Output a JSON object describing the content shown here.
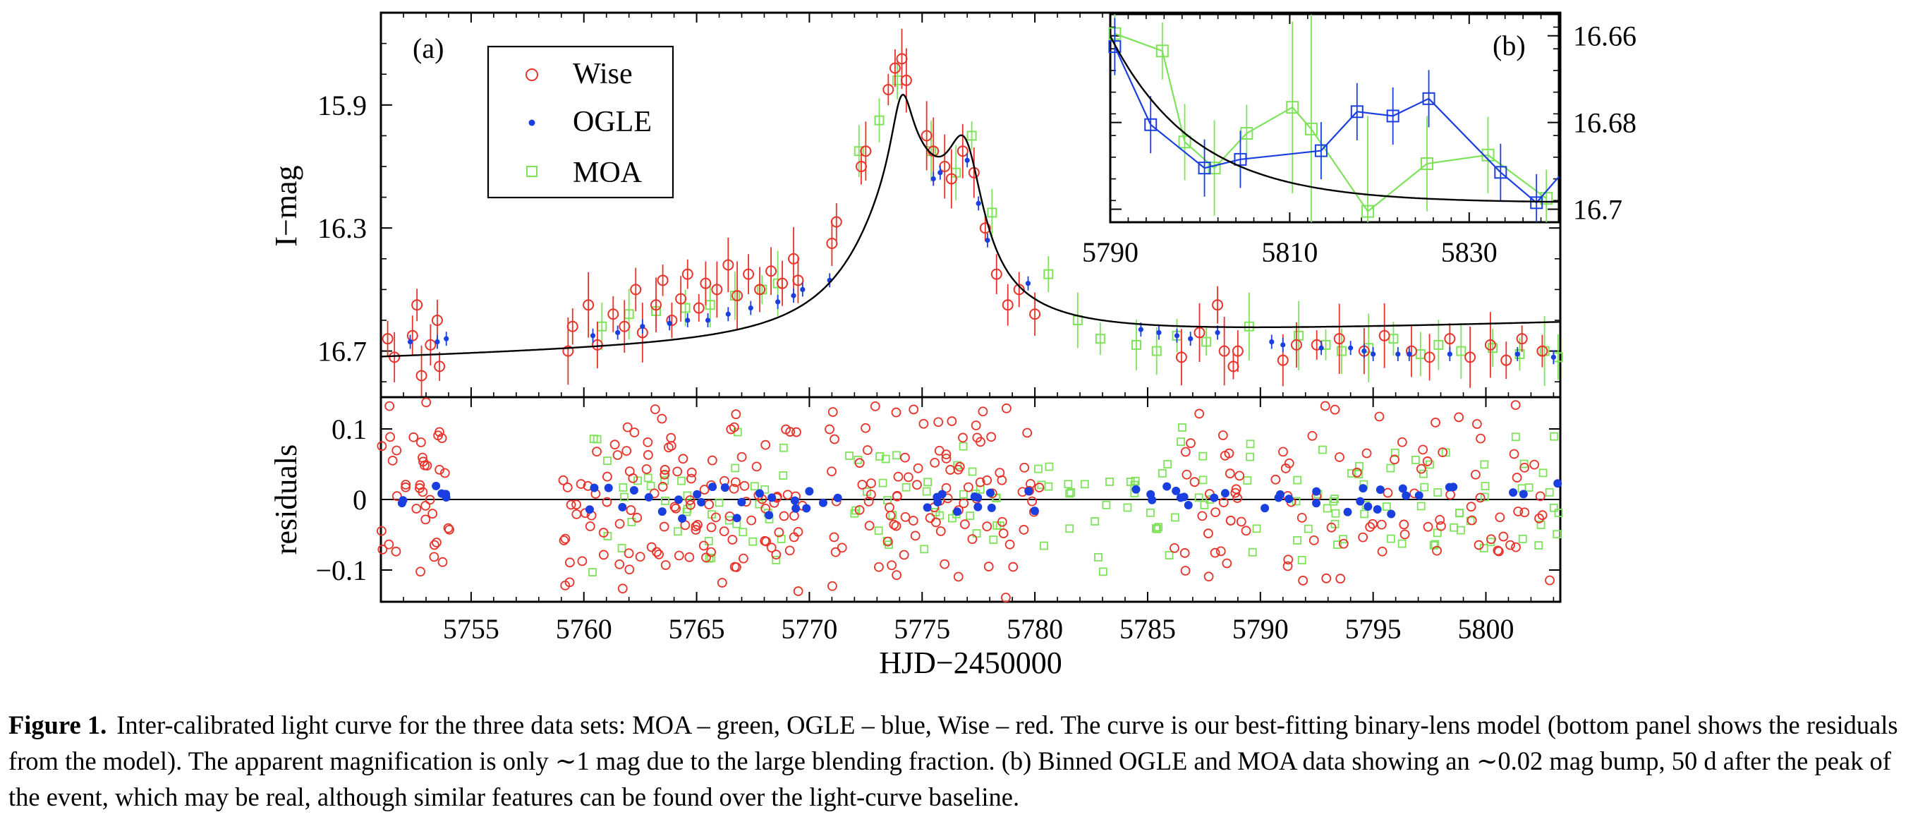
{
  "figure": {
    "caption_label": "Figure 1.",
    "caption_text": "Inter-calibrated light curve for the three data sets: MOA – green, OGLE – blue, Wise – red. The curve is our best-fitting binary-lens model (bottom panel shows the residuals from the model). The apparent magnification is only ∼1 mag due to the large blending fraction. (b) Binned OGLE and MOA data showing an ∼0.02 mag bump, 50 d after the peak of the event, which may be real, although similar features can be found over the light-curve baseline."
  },
  "colors": {
    "wise": "#e8332a",
    "ogle": "#1a3fe0",
    "moa": "#7ee35a",
    "model": "#000000"
  },
  "chart_data": [
    {
      "panel": "a",
      "type": "scatter",
      "panel_label": "(a)",
      "xlabel": "HJD−2450000",
      "ylabel": "I−mag",
      "xlim": [
        5751,
        5803.3
      ],
      "ylim": [
        16.85,
        15.6
      ],
      "y_inverted": true,
      "xticks": [
        5755,
        5760,
        5765,
        5770,
        5775,
        5780,
        5785,
        5790,
        5795,
        5800
      ],
      "yticks": [
        15.9,
        16.3,
        16.7
      ],
      "legend": {
        "placement": "top-left",
        "entries": [
          "Wise",
          "OGLE",
          "MOA"
        ]
      },
      "series": [
        {
          "name": "Wise",
          "marker": "open-circle",
          "color": "#e8332a",
          "points": [
            [
              5751.3,
              16.66
            ],
            [
              5751.6,
              16.72
            ],
            [
              5752.4,
              16.65
            ],
            [
              5752.6,
              16.55
            ],
            [
              5752.8,
              16.78
            ],
            [
              5753.2,
              16.68
            ],
            [
              5753.5,
              16.6
            ],
            [
              5753.6,
              16.75
            ],
            [
              5759.3,
              16.7
            ],
            [
              5759.5,
              16.62
            ],
            [
              5760.2,
              16.55
            ],
            [
              5760.6,
              16.68
            ],
            [
              5761.3,
              16.58
            ],
            [
              5761.8,
              16.62
            ],
            [
              5762.3,
              16.5
            ],
            [
              5762.6,
              16.64
            ],
            [
              5763.2,
              16.55
            ],
            [
              5763.5,
              16.47
            ],
            [
              5763.9,
              16.6
            ],
            [
              5764.3,
              16.53
            ],
            [
              5764.6,
              16.45
            ],
            [
              5765.1,
              16.56
            ],
            [
              5765.4,
              16.48
            ],
            [
              5765.9,
              16.5
            ],
            [
              5766.4,
              16.42
            ],
            [
              5766.8,
              16.52
            ],
            [
              5767.3,
              16.45
            ],
            [
              5767.8,
              16.5
            ],
            [
              5768.3,
              16.44
            ],
            [
              5768.8,
              16.48
            ],
            [
              5769.3,
              16.4
            ],
            [
              5769.5,
              16.47
            ],
            [
              5771.0,
              16.35
            ],
            [
              5771.2,
              16.28
            ],
            [
              5772.3,
              16.1
            ],
            [
              5772.5,
              16.05
            ],
            [
              5773.5,
              15.85
            ],
            [
              5773.8,
              15.78
            ],
            [
              5774.1,
              15.75
            ],
            [
              5774.3,
              15.82
            ],
            [
              5775.2,
              16.0
            ],
            [
              5775.5,
              16.05
            ],
            [
              5776.0,
              16.1
            ],
            [
              5776.3,
              16.14
            ],
            [
              5776.8,
              16.05
            ],
            [
              5777.3,
              16.12
            ],
            [
              5777.8,
              16.3
            ],
            [
              5778.3,
              16.45
            ],
            [
              5778.8,
              16.55
            ],
            [
              5779.3,
              16.5
            ],
            [
              5780.0,
              16.58
            ],
            [
              5786.5,
              16.72
            ],
            [
              5787.3,
              16.64
            ],
            [
              5788.1,
              16.55
            ],
            [
              5788.4,
              16.7
            ],
            [
              5788.8,
              16.75
            ],
            [
              5789.0,
              16.7
            ],
            [
              5791.0,
              16.73
            ],
            [
              5791.6,
              16.68
            ],
            [
              5792.5,
              16.68
            ],
            [
              5793.5,
              16.66
            ],
            [
              5794.6,
              16.7
            ],
            [
              5795.5,
              16.65
            ],
            [
              5796.7,
              16.7
            ],
            [
              5797.5,
              16.72
            ],
            [
              5798.4,
              16.66
            ],
            [
              5799.3,
              16.72
            ],
            [
              5800.2,
              16.68
            ],
            [
              5800.9,
              16.73
            ],
            [
              5801.6,
              16.66
            ],
            [
              5802.5,
              16.7
            ]
          ]
        },
        {
          "name": "OGLE",
          "marker": "dot",
          "color": "#1a3fe0",
          "points": [
            [
              5752.3,
              16.67
            ],
            [
              5753.5,
              16.67
            ],
            [
              5753.9,
              16.66
            ],
            [
              5760.4,
              16.65
            ],
            [
              5761.5,
              16.64
            ],
            [
              5762.6,
              16.62
            ],
            [
              5763.8,
              16.61
            ],
            [
              5764.6,
              16.6
            ],
            [
              5765.5,
              16.6
            ],
            [
              5766.4,
              16.58
            ],
            [
              5767.4,
              16.56
            ],
            [
              5768.6,
              16.54
            ],
            [
              5769.3,
              16.52
            ],
            [
              5769.7,
              16.5
            ],
            [
              5770.9,
              16.47
            ],
            [
              5775.5,
              16.14
            ],
            [
              5775.8,
              16.12
            ],
            [
              5777.0,
              16.08
            ],
            [
              5777.5,
              16.22
            ],
            [
              5777.9,
              16.34
            ],
            [
              5779.7,
              16.48
            ],
            [
              5784.7,
              16.63
            ],
            [
              5785.5,
              16.64
            ],
            [
              5786.3,
              16.65
            ],
            [
              5786.9,
              16.66
            ],
            [
              5788.1,
              16.64
            ],
            [
              5790.5,
              16.67
            ],
            [
              5791.0,
              16.68
            ],
            [
              5792.7,
              16.69
            ],
            [
              5794.0,
              16.69
            ],
            [
              5794.6,
              16.7
            ],
            [
              5795.0,
              16.71
            ],
            [
              5796.1,
              16.71
            ],
            [
              5796.6,
              16.71
            ],
            [
              5798.4,
              16.71
            ],
            [
              5801.4,
              16.71
            ],
            [
              5803.0,
              16.72
            ]
          ]
        },
        {
          "name": "MOA",
          "marker": "open-square",
          "color": "#7ee35a",
          "points": [
            [
              5760.8,
              16.62
            ],
            [
              5762.0,
              16.58
            ],
            [
              5763.2,
              16.57
            ],
            [
              5764.5,
              16.56
            ],
            [
              5765.6,
              16.55
            ],
            [
              5766.7,
              16.52
            ],
            [
              5767.9,
              16.5
            ],
            [
              5768.6,
              16.48
            ],
            [
              5772.2,
              16.05
            ],
            [
              5773.1,
              15.95
            ],
            [
              5773.9,
              15.82
            ],
            [
              5775.4,
              16.05
            ],
            [
              5776.5,
              16.12
            ],
            [
              5777.2,
              16.0
            ],
            [
              5778.1,
              16.25
            ],
            [
              5780.6,
              16.45
            ],
            [
              5781.9,
              16.6
            ],
            [
              5782.9,
              16.66
            ],
            [
              5784.5,
              16.68
            ],
            [
              5785.4,
              16.7
            ],
            [
              5786.3,
              16.65
            ],
            [
              5787.6,
              16.67
            ],
            [
              5789.5,
              16.62
            ],
            [
              5791.7,
              16.65
            ],
            [
              5792.9,
              16.68
            ],
            [
              5793.6,
              16.7
            ],
            [
              5794.8,
              16.69
            ],
            [
              5795.9,
              16.66
            ],
            [
              5797.1,
              16.71
            ],
            [
              5797.9,
              16.68
            ],
            [
              5798.9,
              16.7
            ],
            [
              5800.3,
              16.69
            ],
            [
              5801.5,
              16.71
            ],
            [
              5802.6,
              16.7
            ],
            [
              5803.2,
              16.72
            ]
          ]
        }
      ],
      "model_curve": "binary-lens"
    },
    {
      "panel": "a-residuals",
      "type": "scatter",
      "xlabel": "HJD−2450000",
      "ylabel": "residuals",
      "xlim": [
        5751,
        5803.3
      ],
      "ylim": [
        -0.145,
        0.145
      ],
      "xticks": [
        5755,
        5760,
        5765,
        5770,
        5775,
        5780,
        5785,
        5790,
        5795,
        5800
      ],
      "yticks": [
        0.1,
        0,
        -0.1
      ],
      "ytick_labels": [
        "0.1",
        "0",
        "−0.1"
      ],
      "zero_line": true
    },
    {
      "panel": "b",
      "type": "line",
      "panel_label": "(b)",
      "xlim": [
        5790,
        5840
      ],
      "ylim": [
        16.703,
        16.655
      ],
      "y_inverted": true,
      "xticks": [
        5790,
        5810,
        5830
      ],
      "yticks": [
        16.66,
        16.68,
        16.7
      ],
      "yaxis_side": "right",
      "series": [
        {
          "name": "OGLE",
          "marker": "open-square",
          "color": "#1a3fe0",
          "x": [
            5790.5,
            5794.5,
            5800.5,
            5804.5,
            5813.5,
            5817.5,
            5821.5,
            5825.5,
            5833.5,
            5837.5,
            5840.0
          ],
          "y": [
            16.6625,
            16.6805,
            16.6905,
            16.6885,
            16.6865,
            16.6775,
            16.6785,
            16.6745,
            16.6915,
            16.6985,
            16.6925
          ]
        },
        {
          "name": "MOA",
          "marker": "open-square",
          "color": "#7ee35a",
          "x": [
            5790.5,
            5795.8,
            5798.3,
            5801.6,
            5805.2,
            5810.3,
            5812.4,
            5818.7,
            5825.3,
            5832.1,
            5838.6
          ],
          "y": [
            16.6595,
            16.6635,
            16.6845,
            16.6905,
            16.6825,
            16.6765,
            16.6815,
            16.7005,
            16.6895,
            16.6875,
            16.6975
          ]
        }
      ],
      "model_curve": "binary-lens"
    }
  ]
}
